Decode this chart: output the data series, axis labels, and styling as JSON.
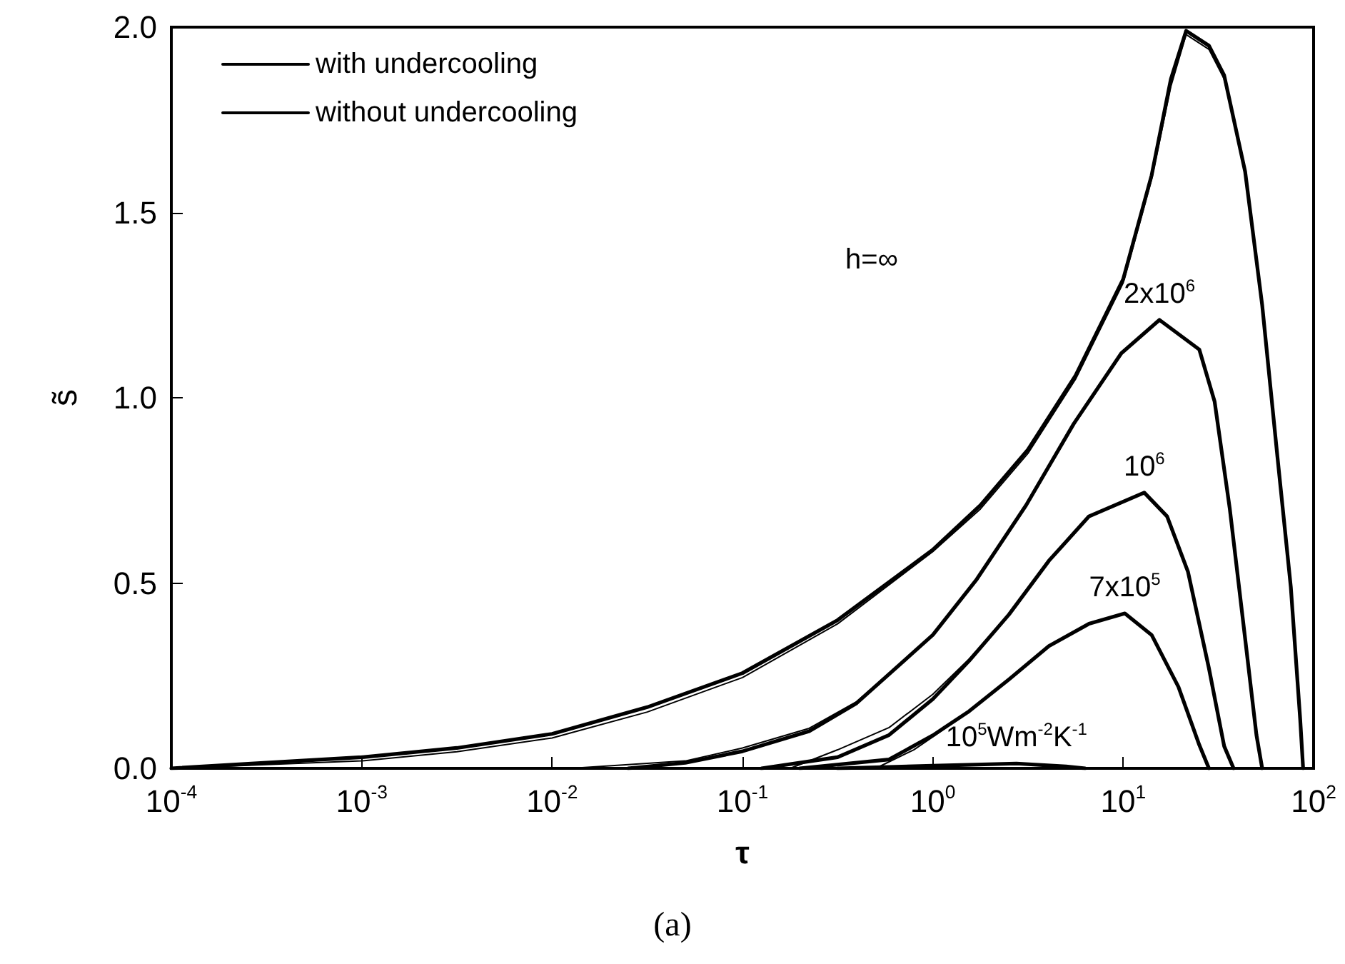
{
  "chart_data": {
    "type": "line",
    "xlabel": "τ",
    "ylabel": "s̃",
    "log": "x",
    "grid": false,
    "legend": "top left",
    "marker": "none",
    "line_style": "solid",
    "xlim": [
      0.0001,
      100
    ],
    "ylim": [
      0,
      2
    ],
    "xticks": [
      {
        "value": 0.0001,
        "label": "10$^{-4}$"
      },
      {
        "value": 0.001,
        "label": "10$^{-3}$"
      },
      {
        "value": 0.01,
        "label": "10$^{-2}$"
      },
      {
        "value": 0.1,
        "label": "10$^{-1}$"
      },
      {
        "value": 1,
        "label": "10$^{0}$"
      },
      {
        "value": 10,
        "label": "10$^{1}$"
      },
      {
        "value": 100,
        "label": "10$^{2}$"
      }
    ],
    "yticks": [
      {
        "value": 0,
        "label": "0.0"
      },
      {
        "value": 0.5,
        "label": "0.5"
      },
      {
        "value": 1,
        "label": "1.0"
      },
      {
        "value": 1.5,
        "label": "1.5"
      },
      {
        "value": 2,
        "label": "2.0"
      }
    ],
    "series": [
      {
        "name": "with undercooling",
        "color": "#000000",
        "x": [
          0.0001,
          0.000316,
          0.001,
          0.00316,
          0.01,
          0.0316,
          0.1,
          0.316,
          1,
          1.78,
          3.16,
          5.62,
          10,
          14.1,
          17.8,
          21.4,
          28.2,
          33.9,
          43.7,
          53.7,
          64.6,
          75.9,
          85.1,
          88.1
        ],
        "values": [
          0,
          0.01,
          0.02,
          0.045,
          0.082,
          0.152,
          0.245,
          0.39,
          0.585,
          0.7,
          0.85,
          1.05,
          1.31,
          1.59,
          1.84,
          1.98,
          1.94,
          1.86,
          1.61,
          1.25,
          0.84,
          0.49,
          0.13,
          0
        ]
      },
      {
        "color": "#000000",
        "x": [
          0.0126,
          0.0501,
          0.1,
          0.224,
          0.398,
          1,
          1.7,
          3.09,
          5.5,
          9.77,
          15.5,
          25.1,
          30.2,
          36.3,
          43.7,
          50.1,
          53.7
        ],
        "values": [
          0,
          0.02,
          0.055,
          0.108,
          0.18,
          0.36,
          0.51,
          0.71,
          0.93,
          1.12,
          1.21,
          1.13,
          0.99,
          0.7,
          0.35,
          0.09,
          0
        ]
      },
      {
        "color": "#000000",
        "x": [
          0.178,
          0.316,
          0.589,
          1,
          1.55,
          2.51,
          4.07,
          6.61,
          12.9,
          17,
          21.9,
          28.2,
          33.9,
          38
        ],
        "values": [
          0,
          0.05,
          0.11,
          0.2,
          0.295,
          0.415,
          0.56,
          0.68,
          0.744,
          0.68,
          0.53,
          0.27,
          0.06,
          0
        ]
      },
      {
        "color": "#000000",
        "x": [
          0.501,
          0.794,
          1,
          1.55,
          2.51,
          4.07,
          6.61,
          10.2,
          14.1,
          19.5,
          25.1,
          28.2
        ],
        "values": [
          0,
          0.05,
          0.085,
          0.154,
          0.24,
          0.33,
          0.39,
          0.418,
          0.36,
          0.22,
          0.063,
          0
        ]
      },
      {
        "name": "without undercooling",
        "color": "#000000",
        "x": [
          0.0001,
          0.000316,
          0.001,
          0.00316,
          0.01,
          0.0316,
          0.1,
          0.316,
          1,
          1.78,
          3.16,
          5.62,
          10,
          14.1,
          17.8,
          21.4,
          28.2,
          33.9,
          43.7,
          53.7,
          64.6,
          75.9,
          85.1,
          88.1
        ],
        "values": [
          0,
          0.015,
          0.03,
          0.055,
          0.093,
          0.165,
          0.257,
          0.4,
          0.59,
          0.71,
          0.86,
          1.06,
          1.32,
          1.6,
          1.86,
          1.99,
          1.95,
          1.87,
          1.61,
          1.25,
          0.84,
          0.49,
          0.13,
          0
        ]
      },
      {
        "color": "#000000",
        "x": [
          0.0251,
          0.0501,
          0.1,
          0.224,
          0.398,
          1,
          1.7,
          3.09,
          5.5,
          9.77,
          15.5,
          25.1,
          30.2,
          36.3,
          43.7,
          50.1,
          53.7
        ],
        "values": [
          0,
          0.015,
          0.046,
          0.1,
          0.176,
          0.36,
          0.51,
          0.71,
          0.93,
          1.12,
          1.21,
          1.13,
          0.99,
          0.7,
          0.35,
          0.09,
          0
        ]
      },
      {
        "color": "#000000",
        "x": [
          0.126,
          0.316,
          0.589,
          1,
          1.55,
          2.51,
          4.07,
          6.61,
          12.9,
          17,
          21.9,
          28.2,
          33.9,
          38
        ],
        "values": [
          0,
          0.03,
          0.09,
          0.187,
          0.29,
          0.415,
          0.56,
          0.68,
          0.744,
          0.68,
          0.53,
          0.27,
          0.06,
          0
        ]
      },
      {
        "color": "#000000",
        "x": [
          0.2,
          0.589,
          1,
          1.55,
          2.51,
          4.07,
          6.61,
          10.2,
          14.1,
          19.5,
          25.1,
          28.2
        ],
        "values": [
          0,
          0.024,
          0.089,
          0.154,
          0.24,
          0.33,
          0.39,
          0.418,
          0.36,
          0.22,
          0.063,
          0
        ]
      },
      {
        "color": "#000000",
        "x": [
          0.316,
          1,
          2.75,
          5.01,
          6.31
        ],
        "values": [
          0,
          0.007,
          0.013,
          0.005,
          0
        ]
      }
    ],
    "annotations": [
      "h=∞",
      {
        "text": "2x10$^{6}$",
        "x": 15.5,
        "y": 1.21
      },
      {
        "text": "10$^{6}$",
        "x": 12.9,
        "y": 0.744
      },
      {
        "text": "7x10$^{5}$",
        "x": 10.2,
        "y": 0.418
      },
      {
        "text": "10$^{5}$Wm$^{-2}$K$^{-1}$",
        "x": 2.75,
        "y": 0.013
      },
      "(a)"
    ]
  }
}
